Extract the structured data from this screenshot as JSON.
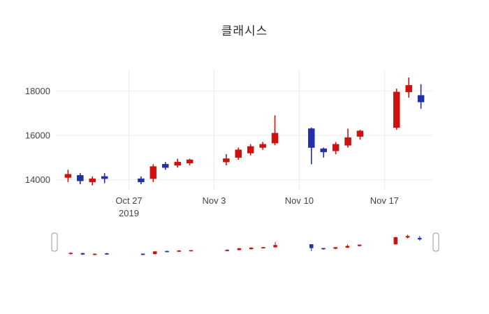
{
  "title": "클래시스",
  "axes": {
    "y_ticks": [
      {
        "label": "14000",
        "value": 14000
      },
      {
        "label": "16000",
        "value": 16000
      },
      {
        "label": "18000",
        "value": 18000
      }
    ],
    "x_ticks": [
      {
        "label": "Oct 27",
        "sublabel": "2019",
        "date": "2019-10-27"
      },
      {
        "label": "Nov 3",
        "sublabel": "",
        "date": "2019-11-03"
      },
      {
        "label": "Nov 10",
        "sublabel": "",
        "date": "2019-11-10"
      },
      {
        "label": "Nov 17",
        "sublabel": "",
        "date": "2019-11-17"
      }
    ]
  },
  "colors": {
    "increasing": "#cc1111",
    "decreasing": "#2130a6",
    "grid": "#ebebeb",
    "axis_text": "#444444",
    "handle_border": "#999999",
    "handle_fill": "#ffffff"
  },
  "chart_data": {
    "type": "candlestick",
    "title": "클래시스",
    "xlabel": "",
    "ylabel": "",
    "x_range": [
      "2019-10-21",
      "2019-11-21"
    ],
    "y_range": [
      13550,
      18950
    ],
    "rangeslider": true,
    "legend": "none",
    "candles": [
      {
        "date": "2019-10-22",
        "open": 14100,
        "high": 14450,
        "low": 13900,
        "close": 14250
      },
      {
        "date": "2019-10-23",
        "open": 14200,
        "high": 14300,
        "low": 13800,
        "close": 13950
      },
      {
        "date": "2019-10-24",
        "open": 13900,
        "high": 14150,
        "low": 13750,
        "close": 14050
      },
      {
        "date": "2019-10-25",
        "open": 14150,
        "high": 14300,
        "low": 13850,
        "close": 14050
      },
      {
        "date": "2019-10-28",
        "open": 14050,
        "high": 14150,
        "low": 13800,
        "close": 13900
      },
      {
        "date": "2019-10-29",
        "open": 14050,
        "high": 14700,
        "low": 13900,
        "close": 14600
      },
      {
        "date": "2019-10-30",
        "open": 14700,
        "high": 14800,
        "low": 14450,
        "close": 14550
      },
      {
        "date": "2019-10-31",
        "open": 14650,
        "high": 14950,
        "low": 14550,
        "close": 14800
      },
      {
        "date": "2019-11-01",
        "open": 14750,
        "high": 14950,
        "low": 14650,
        "close": 14900
      },
      {
        "date": "2019-11-04",
        "open": 14800,
        "high": 15150,
        "low": 14650,
        "close": 14950
      },
      {
        "date": "2019-11-05",
        "open": 15000,
        "high": 15450,
        "low": 14900,
        "close": 15350
      },
      {
        "date": "2019-11-06",
        "open": 15200,
        "high": 15600,
        "low": 15100,
        "close": 15500
      },
      {
        "date": "2019-11-07",
        "open": 15450,
        "high": 15700,
        "low": 15350,
        "close": 15600
      },
      {
        "date": "2019-11-08",
        "open": 15650,
        "high": 16900,
        "low": 15550,
        "close": 16100
      },
      {
        "date": "2019-11-11",
        "open": 16300,
        "high": 16350,
        "low": 14700,
        "close": 15450
      },
      {
        "date": "2019-11-12",
        "open": 15400,
        "high": 15450,
        "low": 15000,
        "close": 15250
      },
      {
        "date": "2019-11-13",
        "open": 15300,
        "high": 15700,
        "low": 15150,
        "close": 15600
      },
      {
        "date": "2019-11-14",
        "open": 15550,
        "high": 16300,
        "low": 15450,
        "close": 15900
      },
      {
        "date": "2019-11-15",
        "open": 15950,
        "high": 16250,
        "low": 15800,
        "close": 16200
      },
      {
        "date": "2019-11-18",
        "open": 16350,
        "high": 18100,
        "low": 16250,
        "close": 17950
      },
      {
        "date": "2019-11-19",
        "open": 17950,
        "high": 18600,
        "low": 17700,
        "close": 18250
      },
      {
        "date": "2019-11-20",
        "open": 17800,
        "high": 18300,
        "low": 17200,
        "close": 17500
      }
    ]
  }
}
